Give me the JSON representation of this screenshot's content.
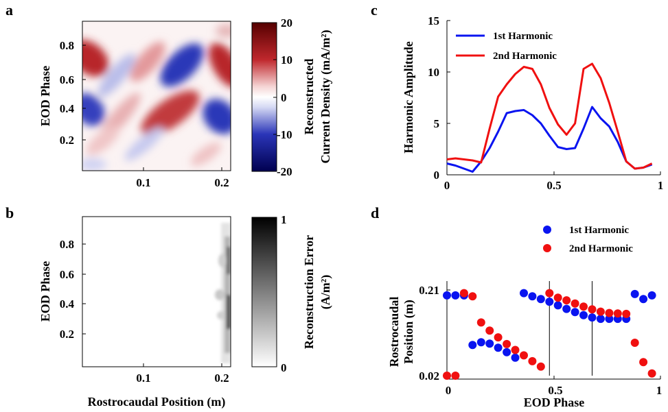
{
  "panels": {
    "a": "a",
    "b": "b",
    "c": "c",
    "d": "d"
  },
  "colors": {
    "series1": "#0a14f0",
    "series2": "#f01010"
  },
  "chart_data": [
    {
      "panel": "a",
      "type": "heatmap",
      "title": "",
      "xlabel": "",
      "ylabel": "EOD Phase",
      "x_ticks": [
        "0.1",
        "0.2"
      ],
      "y_ticks": [
        "0.8",
        "0.6",
        "0.4",
        "0.2"
      ],
      "colorbar": {
        "label_line1": "Reconstructed",
        "label_line2": "Current Density (mA/m²)",
        "ticks": [
          "20",
          "10",
          "0",
          "-10",
          "-20"
        ],
        "range": [
          -20,
          20
        ],
        "colormap": "blue-white-red"
      }
    },
    {
      "panel": "b",
      "type": "heatmap",
      "title": "",
      "xlabel": "Rostrocaudal Position (m)",
      "ylabel": "EOD Phase",
      "x_ticks": [
        "0.1",
        "0.2"
      ],
      "y_ticks": [
        "0.8",
        "0.6",
        "0.4",
        "0.2"
      ],
      "colorbar": {
        "label_line1": "Reconstruction Error",
        "label_line2": "(A/m²)",
        "ticks": [
          "1",
          "0"
        ],
        "range": [
          0,
          1
        ],
        "colormap": "white-black"
      }
    },
    {
      "panel": "c",
      "type": "line",
      "title": "",
      "xlabel": "",
      "ylabel": "Harmonic Amplitude",
      "xlim": [
        0,
        1
      ],
      "ylim": [
        0,
        15
      ],
      "x_ticks": [
        "0",
        "0.5",
        "1"
      ],
      "y_ticks": [
        "15",
        "10",
        "5",
        "0"
      ],
      "legend": "top-left",
      "series": [
        {
          "name": "1st Harmonic",
          "x": [
            0,
            0.04,
            0.08,
            0.12,
            0.16,
            0.2,
            0.24,
            0.28,
            0.32,
            0.36,
            0.4,
            0.44,
            0.48,
            0.52,
            0.56,
            0.6,
            0.64,
            0.68,
            0.72,
            0.76,
            0.8,
            0.84,
            0.88,
            0.92,
            0.96
          ],
          "y": [
            1.1,
            0.9,
            0.6,
            0.3,
            1.3,
            2.6,
            4.2,
            6.0,
            6.2,
            6.3,
            5.8,
            5.0,
            3.8,
            2.7,
            2.5,
            2.6,
            4.5,
            6.6,
            5.5,
            4.7,
            3.2,
            1.3,
            0.6,
            0.7,
            1.0
          ]
        },
        {
          "name": "2nd Harmonic",
          "x": [
            0,
            0.04,
            0.08,
            0.12,
            0.16,
            0.2,
            0.24,
            0.28,
            0.32,
            0.36,
            0.4,
            0.44,
            0.48,
            0.52,
            0.56,
            0.6,
            0.64,
            0.68,
            0.72,
            0.76,
            0.8,
            0.84,
            0.88,
            0.92,
            0.96
          ],
          "y": [
            1.5,
            1.6,
            1.5,
            1.4,
            1.2,
            4.5,
            7.6,
            8.8,
            9.8,
            10.5,
            10.3,
            8.8,
            6.5,
            4.9,
            3.9,
            5.0,
            10.3,
            10.8,
            9.4,
            7.0,
            4.2,
            1.3,
            0.6,
            0.7,
            1.1
          ]
        }
      ]
    },
    {
      "panel": "d",
      "type": "scatter",
      "title": "",
      "xlabel": "EOD Phase",
      "ylabel_line1": "Rostrocaudal",
      "ylabel_line2": "Position (m)",
      "xlim": [
        0,
        1
      ],
      "ylim": [
        0.02,
        0.21
      ],
      "x_ticks": [
        "0",
        "0.5",
        "1"
      ],
      "y_ticks": [
        "0.21",
        "0.02"
      ],
      "legend": "top-right",
      "vertical_lines": [
        0,
        0.48,
        0.68
      ],
      "series": [
        {
          "name": "1st Harmonic",
          "x": [
            0,
            0.04,
            0.08,
            0.12,
            0.16,
            0.2,
            0.24,
            0.28,
            0.32,
            0.36,
            0.4,
            0.44,
            0.48,
            0.52,
            0.56,
            0.6,
            0.64,
            0.68,
            0.72,
            0.76,
            0.8,
            0.84,
            0.88,
            0.92,
            0.96
          ],
          "y": [
            0.198,
            0.198,
            0.198,
            0.088,
            0.094,
            0.091,
            0.082,
            0.072,
            0.06,
            0.203,
            0.196,
            0.19,
            0.184,
            0.176,
            0.168,
            0.161,
            0.154,
            0.149,
            0.146,
            0.146,
            0.146,
            0.146,
            0.201,
            0.19,
            0.198
          ]
        },
        {
          "name": "2nd Harmonic",
          "x": [
            0,
            0.04,
            0.08,
            0.12,
            0.16,
            0.2,
            0.24,
            0.28,
            0.32,
            0.36,
            0.4,
            0.44,
            0.48,
            0.52,
            0.56,
            0.6,
            0.64,
            0.68,
            0.72,
            0.76,
            0.8,
            0.84,
            0.88,
            0.92,
            0.96
          ],
          "y": [
            0.02,
            0.02,
            0.203,
            0.196,
            0.138,
            0.12,
            0.105,
            0.09,
            0.077,
            0.065,
            0.052,
            0.04,
            0.203,
            0.193,
            0.187,
            0.18,
            0.173,
            0.167,
            0.162,
            0.159,
            0.158,
            0.157,
            0.093,
            0.05,
            0.025
          ]
        }
      ]
    }
  ]
}
